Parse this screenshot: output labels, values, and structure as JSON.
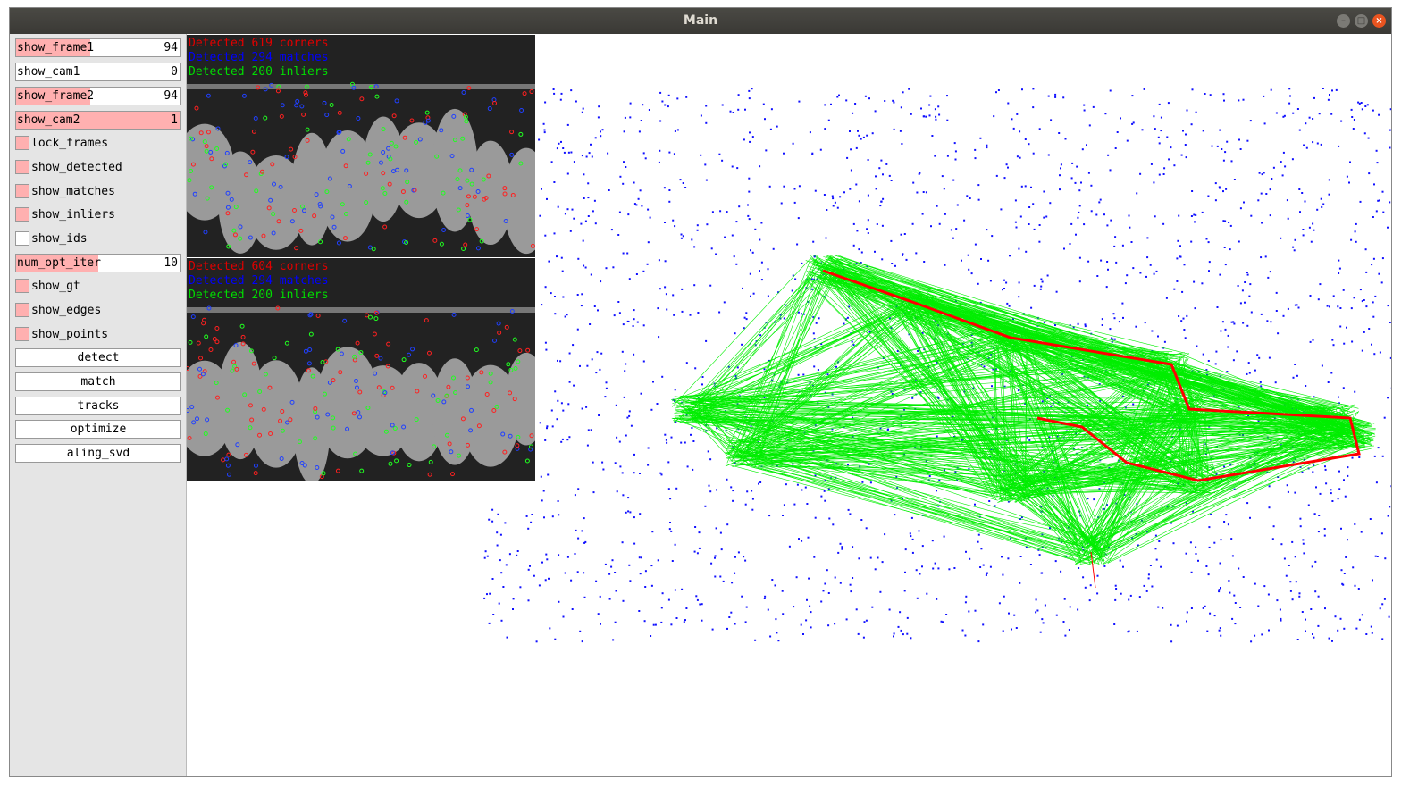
{
  "window": {
    "title": "Main"
  },
  "sidebar": {
    "sliders": [
      {
        "label": "show_frame1",
        "value": "94",
        "fill": 0.45
      },
      {
        "label": "show_cam1",
        "value": "0",
        "fill": 0
      },
      {
        "label": "show_frame2",
        "value": "94",
        "fill": 0.45
      },
      {
        "label": "show_cam2",
        "value": "1",
        "fill": 1
      }
    ],
    "checkboxes1": [
      {
        "label": "lock_frames",
        "checked": true
      },
      {
        "label": "show_detected",
        "checked": true
      },
      {
        "label": "show_matches",
        "checked": true
      },
      {
        "label": "show_inliers",
        "checked": true
      },
      {
        "label": "show_ids",
        "checked": false
      }
    ],
    "num_opt_iter": {
      "label": "num_opt_iter",
      "value": "10",
      "fill": 0.5
    },
    "checkboxes2": [
      {
        "label": "show_gt",
        "checked": true
      },
      {
        "label": "show_edges",
        "checked": true
      },
      {
        "label": "show_points",
        "checked": true
      }
    ],
    "buttons": [
      "detect",
      "match",
      "tracks",
      "optimize",
      "aling_svd"
    ]
  },
  "frame1": {
    "corners": "Detected 619 corners",
    "matches": "Detected 294 matches",
    "inliers": "Detected 200 inliers"
  },
  "frame2": {
    "corners": "Detected 604 corners",
    "matches": "Detected 294 matches",
    "inliers": "Detected 200 inliers"
  },
  "colors": {
    "points": "#1010ff",
    "edges": "#00ee00",
    "gt": "#ff0000",
    "slider_fill": "#ffb0b0"
  }
}
